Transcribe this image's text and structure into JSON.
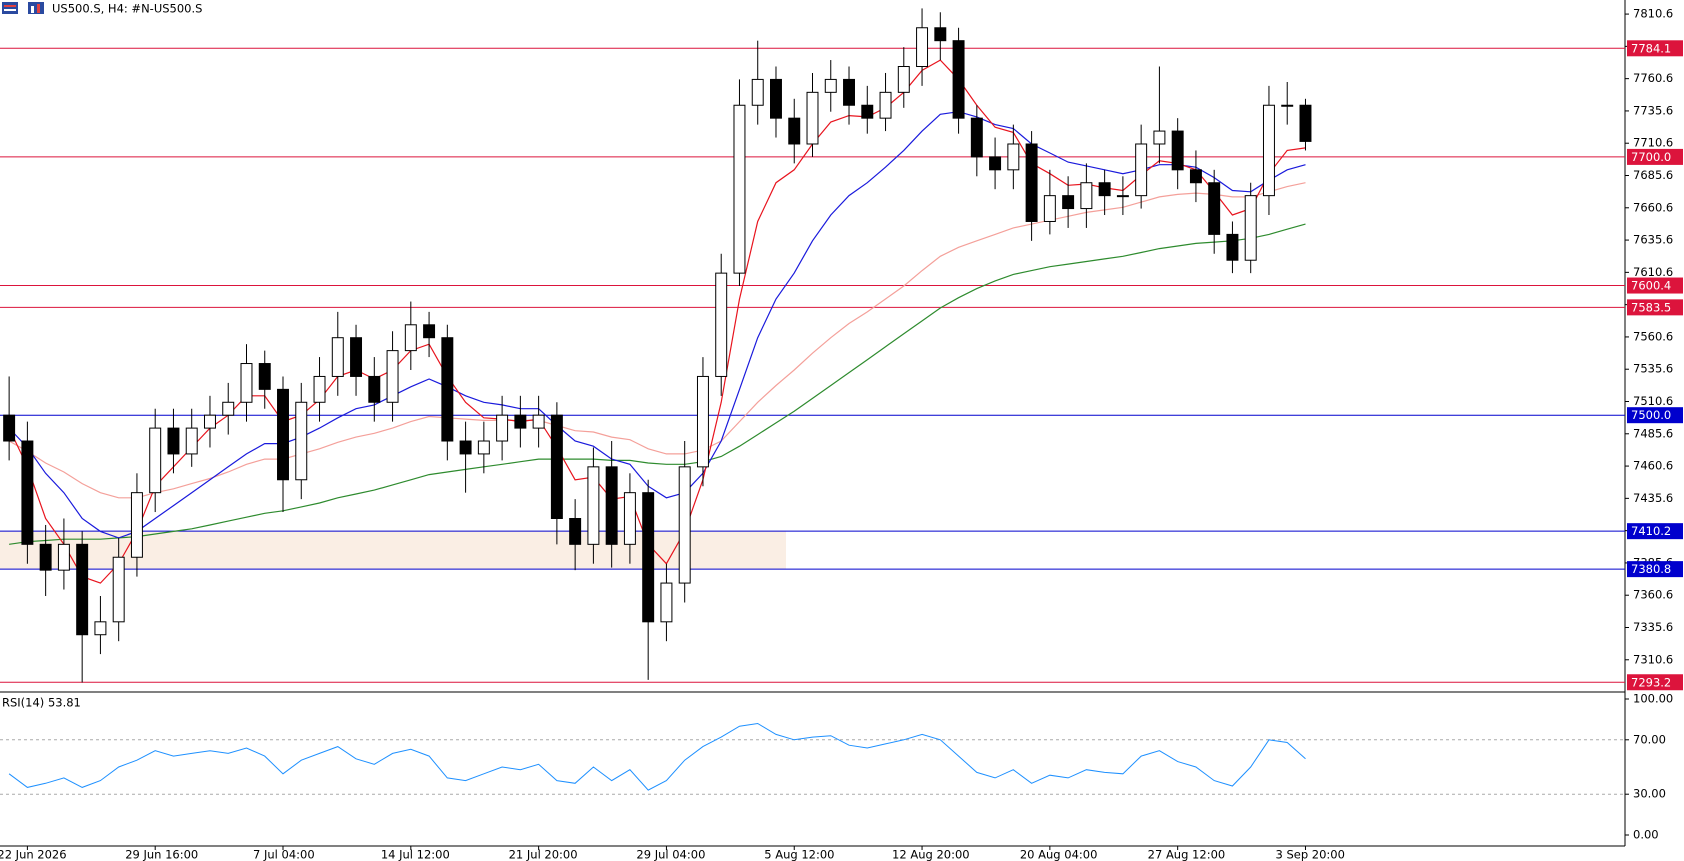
{
  "chart_data": {
    "type": "candlestick",
    "title": "US500.S, H4:  #N-US500.S",
    "categories": [
      null,
      "22 Jun 2026",
      null,
      null,
      null,
      null,
      null,
      null,
      "29 Jun 16:00",
      null,
      null,
      null,
      null,
      null,
      null,
      "7 Jul 04:00",
      null,
      null,
      null,
      null,
      null,
      null,
      "14 Jul 12:00",
      null,
      null,
      null,
      null,
      null,
      null,
      "21 Jul 20:00",
      null,
      null,
      null,
      null,
      null,
      null,
      "29 Jul 04:00",
      null,
      null,
      null,
      null,
      null,
      null,
      "5 Aug 12:00",
      null,
      null,
      null,
      null,
      null,
      null,
      "12 Aug 20:00",
      null,
      null,
      null,
      null,
      null,
      null,
      "20 Aug 04:00",
      null,
      null,
      null,
      null,
      null,
      null,
      "27 Aug 12:00",
      null,
      null,
      null,
      null,
      null,
      null,
      "3 Sep 20:00"
    ],
    "open": [
      7500,
      7480,
      7400,
      7380,
      7400,
      7330,
      7340,
      7390,
      7440,
      7490,
      7470,
      7490,
      7500,
      7510,
      7540,
      7520,
      7450,
      7510,
      7530,
      7560,
      7530,
      7510,
      7550,
      7570,
      7560,
      7480,
      7470,
      7480,
      7500,
      7490,
      7500,
      7420,
      7400,
      7460,
      7400,
      7440,
      7340,
      7370,
      7460,
      7530,
      7610,
      7740,
      7760,
      7730,
      7710,
      7750,
      7760,
      7740,
      7730,
      7750,
      7770,
      7800,
      7790,
      7730,
      7700,
      7690,
      7710,
      7650,
      7670,
      7660,
      7680,
      7670,
      7670,
      7710,
      7720,
      7690,
      7680,
      7640,
      7620,
      7670,
      7740,
      7740
    ],
    "high": [
      7530,
      7495,
      7415,
      7420,
      7410,
      7360,
      7405,
      7455,
      7505,
      7505,
      7505,
      7515,
      7525,
      7555,
      7550,
      7530,
      7525,
      7545,
      7580,
      7570,
      7545,
      7565,
      7588,
      7580,
      7570,
      7495,
      7495,
      7515,
      7515,
      7515,
      7510,
      7435,
      7475,
      7480,
      7455,
      7450,
      7385,
      7480,
      7545,
      7625,
      7760,
      7790,
      7770,
      7745,
      7765,
      7775,
      7770,
      7755,
      7765,
      7785,
      7815,
      7812,
      7800,
      7740,
      7715,
      7725,
      7720,
      7690,
      7685,
      7695,
      7690,
      7685,
      7725,
      7770,
      7730,
      7705,
      7690,
      7650,
      7680,
      7755,
      7758,
      7745
    ],
    "low": [
      7465,
      7385,
      7360,
      7365,
      7293,
      7315,
      7325,
      7375,
      7425,
      7455,
      7460,
      7475,
      7485,
      7495,
      7505,
      7425,
      7435,
      7495,
      7515,
      7515,
      7495,
      7495,
      7535,
      7545,
      7465,
      7440,
      7455,
      7465,
      7475,
      7475,
      7400,
      7380,
      7385,
      7382,
      7385,
      7295,
      7325,
      7355,
      7445,
      7515,
      7600,
      7725,
      7715,
      7695,
      7700,
      7735,
      7725,
      7718,
      7720,
      7738,
      7755,
      7775,
      7718,
      7685,
      7675,
      7675,
      7635,
      7640,
      7645,
      7645,
      7655,
      7655,
      7660,
      7695,
      7675,
      7665,
      7625,
      7610,
      7610,
      7655,
      7725,
      7705
    ],
    "close": [
      7480,
      7400,
      7380,
      7400,
      7330,
      7340,
      7390,
      7440,
      7490,
      7470,
      7490,
      7500,
      7510,
      7540,
      7520,
      7450,
      7510,
      7530,
      7560,
      7530,
      7510,
      7550,
      7570,
      7560,
      7480,
      7470,
      7480,
      7500,
      7490,
      7500,
      7420,
      7400,
      7460,
      7400,
      7440,
      7340,
      7370,
      7460,
      7530,
      7610,
      7740,
      7760,
      7730,
      7710,
      7750,
      7760,
      7740,
      7730,
      7750,
      7770,
      7800,
      7790,
      7730,
      7700,
      7690,
      7710,
      7650,
      7670,
      7660,
      7680,
      7670,
      7670,
      7710,
      7720,
      7690,
      7680,
      7640,
      7620,
      7670,
      7740,
      7740,
      7712
    ],
    "moving_averages": [
      {
        "color": "#2e8b2e",
        "values": [
          7400,
          7402,
          7403,
          7404,
          7404,
          7404,
          7405,
          7406,
          7408,
          7410,
          7412,
          7415,
          7418,
          7421,
          7424,
          7426,
          7429,
          7432,
          7436,
          7439,
          7442,
          7446,
          7450,
          7454,
          7456,
          7458,
          7460,
          7462,
          7464,
          7466,
          7466,
          7466,
          7466,
          7465,
          7465,
          7463,
          7462,
          7462,
          7464,
          7468,
          7476,
          7485,
          7494,
          7503,
          7513,
          7523,
          7533,
          7543,
          7553,
          7563,
          7573,
          7583,
          7591,
          7598,
          7604,
          7609,
          7612,
          7615,
          7617,
          7619,
          7621,
          7623,
          7626,
          7629,
          7631,
          7633,
          7634,
          7635,
          7637,
          7640,
          7644,
          7648
        ]
      },
      {
        "color": "#f4a09a",
        "values": [
          7480,
          7472,
          7463,
          7456,
          7447,
          7440,
          7436,
          7436,
          7440,
          7443,
          7447,
          7451,
          7456,
          7462,
          7466,
          7466,
          7470,
          7474,
          7479,
          7483,
          7486,
          7490,
          7495,
          7499,
          7498,
          7497,
          7496,
          7496,
          7496,
          7496,
          7492,
          7488,
          7487,
          7483,
          7481,
          7474,
          7470,
          7470,
          7473,
          7480,
          7495,
          7510,
          7523,
          7535,
          7548,
          7560,
          7571,
          7580,
          7590,
          7600,
          7612,
          7623,
          7630,
          7635,
          7640,
          7645,
          7648,
          7651,
          7654,
          7657,
          7659,
          7661,
          7665,
          7669,
          7671,
          7672,
          7671,
          7669,
          7669,
          7673,
          7677,
          7680
        ]
      },
      {
        "color": "#1a1adc",
        "values": [
          7490,
          7475,
          7455,
          7440,
          7420,
          7410,
          7405,
          7410,
          7420,
          7430,
          7440,
          7450,
          7460,
          7470,
          7478,
          7478,
          7483,
          7490,
          7498,
          7505,
          7508,
          7515,
          7522,
          7528,
          7522,
          7515,
          7510,
          7508,
          7505,
          7505,
          7492,
          7480,
          7476,
          7466,
          7462,
          7445,
          7436,
          7440,
          7455,
          7480,
          7520,
          7560,
          7590,
          7610,
          7635,
          7655,
          7670,
          7680,
          7692,
          7705,
          7720,
          7733,
          7735,
          7731,
          7725,
          7722,
          7710,
          7703,
          7696,
          7693,
          7690,
          7687,
          7690,
          7694,
          7694,
          7692,
          7684,
          7674,
          7673,
          7682,
          7690,
          7694
        ]
      },
      {
        "color": "#e8141e",
        "values": [
          7490,
          7460,
          7420,
          7400,
          7375,
          7370,
          7385,
          7410,
          7445,
          7460,
          7475,
          7490,
          7500,
          7515,
          7515,
          7495,
          7500,
          7512,
          7530,
          7535,
          7528,
          7535,
          7550,
          7555,
          7530,
          7510,
          7498,
          7497,
          7495,
          7497,
          7475,
          7450,
          7452,
          7435,
          7437,
          7400,
          7385,
          7410,
          7450,
          7510,
          7590,
          7650,
          7680,
          7690,
          7710,
          7727,
          7732,
          7731,
          7738,
          7750,
          7767,
          7775,
          7760,
          7740,
          7723,
          7719,
          7695,
          7687,
          7678,
          7679,
          7676,
          7674,
          7686,
          7697,
          7695,
          7690,
          7673,
          7655,
          7660,
          7687,
          7705,
          7707
        ]
      }
    ],
    "ylim": [
      7287.2,
      7821.5
    ],
    "yticks": [
      7810.6,
      7785.6,
      7760.6,
      7735.6,
      7710.6,
      7685.6,
      7660.6,
      7635.6,
      7610.6,
      7585.6,
      7560.6,
      7535.6,
      7510.6,
      7485.6,
      7460.6,
      7435.6,
      7410.6,
      7385.6,
      7360.6,
      7335.6,
      7310.6
    ],
    "zone": {
      "ylim": [
        7380.8,
        7410.2
      ],
      "color": "#faeee4"
    },
    "levels": [
      {
        "value": 7784.1,
        "color": "#dc143c"
      },
      {
        "value": 7700,
        "label": "7700.0",
        "color": "#dc143c"
      },
      {
        "value": 7600.4,
        "color": "#dc143c"
      },
      {
        "value": 7583.5,
        "color": "#dc143c"
      },
      {
        "value": 7293.2,
        "color": "#dc143c"
      },
      {
        "value": 7500,
        "label": "7500.0",
        "color": "#0000cd"
      },
      {
        "value": 7410.2,
        "color": "#0000cd"
      },
      {
        "value": 7380.8,
        "color": "#0000cd"
      }
    ],
    "rsi": {
      "title": "RSI(14) 53.81",
      "color": "#1e90ff",
      "values": [
        45,
        35,
        38,
        42,
        35,
        40,
        50,
        55,
        62,
        58,
        60,
        62,
        60,
        64,
        58,
        45,
        55,
        60,
        65,
        56,
        52,
        60,
        63,
        58,
        42,
        40,
        45,
        50,
        48,
        52,
        40,
        38,
        50,
        40,
        48,
        33,
        40,
        55,
        65,
        72,
        80,
        82,
        74,
        70,
        72,
        73,
        66,
        64,
        67,
        70,
        74,
        70,
        58,
        46,
        42,
        48,
        38,
        44,
        42,
        48,
        46,
        45,
        58,
        62,
        54,
        50,
        40,
        36,
        50,
        70,
        68,
        56
      ],
      "ylim": [
        0,
        100
      ],
      "yticks": [
        {
          "value": 100,
          "label": "100.00"
        },
        {
          "value": 70,
          "label": "70.00"
        },
        {
          "value": 30,
          "label": "30.00"
        },
        {
          "value": 0,
          "label": "0.00"
        }
      ],
      "levels": [
        70,
        30
      ]
    }
  }
}
